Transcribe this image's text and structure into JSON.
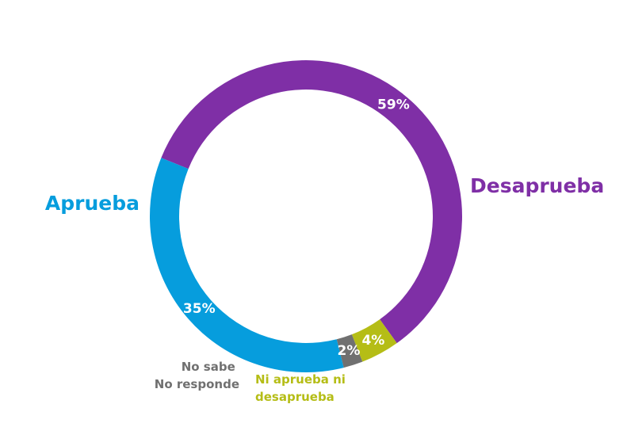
{
  "chart_data": {
    "type": "pie",
    "variant": "donut",
    "title": "",
    "series": [
      {
        "name": "Desaprueba",
        "label_lines": [
          "Desaprueba"
        ],
        "value": 59,
        "value_label": "59%",
        "color": "#7f2fa6"
      },
      {
        "name": "Ni aprueba ni desaprueba",
        "label_lines": [
          "Ni aprueba ni",
          "desaprueba"
        ],
        "value": 4,
        "value_label": "4%",
        "color": "#b5bd16"
      },
      {
        "name": "No sabe No responde",
        "label_lines": [
          "No sabe",
          "No responde"
        ],
        "value": 2,
        "value_label": "2%",
        "color": "#707070"
      },
      {
        "name": "Aprueba",
        "label_lines": [
          "Aprueba"
        ],
        "value": 35,
        "value_label": "35%",
        "color": "#069ddd"
      }
    ]
  }
}
